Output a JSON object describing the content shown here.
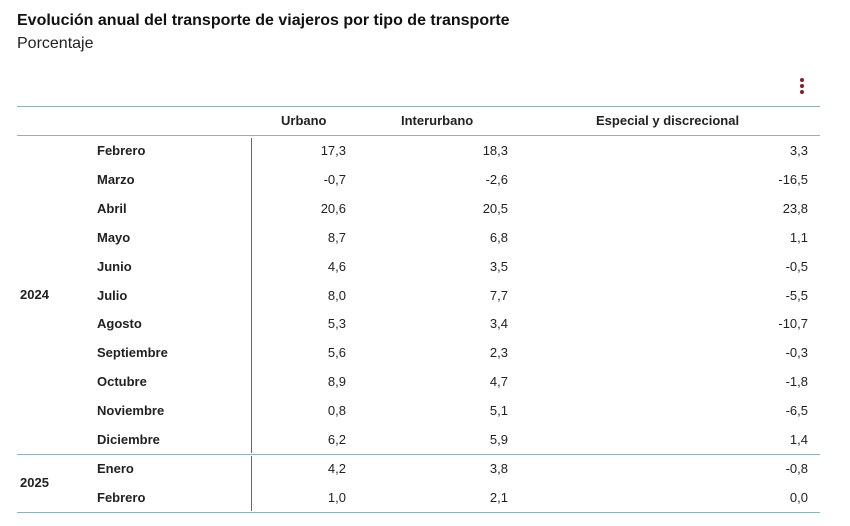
{
  "header": {
    "title": "Evolución anual del transporte de viajeros por tipo de transporte",
    "subtitle": "Porcentaje",
    "menu_icon": "vertical-ellipsis-icon"
  },
  "colors": {
    "accent": "#8a1c2b",
    "rule": "#8fb3b8",
    "divider": "#5a6b73"
  },
  "chart_data": {
    "type": "table",
    "title": "Evolución anual del transporte de viajeros por tipo de transporte",
    "subtitle": "Porcentaje",
    "columns": [
      "Urbano",
      "Interurbano",
      "Especial y discrecional"
    ],
    "groups": [
      {
        "year": "2024",
        "rows": [
          {
            "month": "Febrero",
            "values": [
              "17,3",
              "18,3",
              "3,3"
            ]
          },
          {
            "month": "Marzo",
            "values": [
              "-0,7",
              "-2,6",
              "-16,5"
            ]
          },
          {
            "month": "Abril",
            "values": [
              "20,6",
              "20,5",
              "23,8"
            ]
          },
          {
            "month": "Mayo",
            "values": [
              "8,7",
              "6,8",
              "1,1"
            ]
          },
          {
            "month": "Junio",
            "values": [
              "4,6",
              "3,5",
              "-0,5"
            ]
          },
          {
            "month": "Julio",
            "values": [
              "8,0",
              "7,7",
              "-5,5"
            ]
          },
          {
            "month": "Agosto",
            "values": [
              "5,3",
              "3,4",
              "-10,7"
            ]
          },
          {
            "month": "Septiembre",
            "values": [
              "5,6",
              "2,3",
              "-0,3"
            ]
          },
          {
            "month": "Octubre",
            "values": [
              "8,9",
              "4,7",
              "-1,8"
            ]
          },
          {
            "month": "Noviembre",
            "values": [
              "0,8",
              "5,1",
              "-6,5"
            ]
          },
          {
            "month": "Diciembre",
            "values": [
              "6,2",
              "5,9",
              "1,4"
            ]
          }
        ]
      },
      {
        "year": "2025",
        "rows": [
          {
            "month": "Enero",
            "values": [
              "4,2",
              "3,8",
              "-0,8"
            ]
          },
          {
            "month": "Febrero",
            "values": [
              "1,0",
              "2,1",
              "0,0"
            ]
          }
        ]
      }
    ]
  }
}
